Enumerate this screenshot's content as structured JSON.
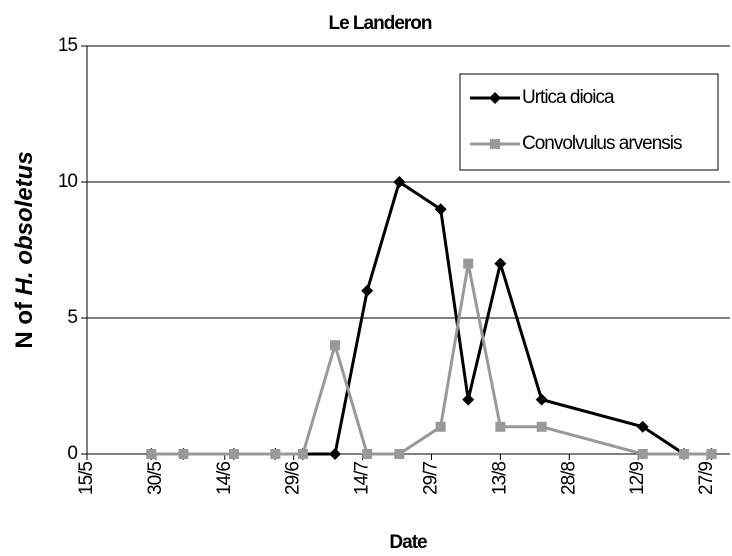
{
  "chart_data": {
    "type": "line",
    "title": "Le Landeron",
    "xlabel": "Date",
    "ylabel": [
      "N of ",
      "H. obsoletus"
    ],
    "x": [
      149,
      156,
      167,
      176,
      182,
      189,
      196,
      203,
      212,
      218,
      225,
      234,
      256,
      265,
      271
    ],
    "series": [
      {
        "name": "Urtica dioica",
        "color": "#000000",
        "marker": "diamond",
        "values": [
          0,
          0,
          0,
          0,
          0,
          0,
          6,
          10,
          9,
          2,
          7,
          2,
          1,
          0,
          0
        ]
      },
      {
        "name": "Convolvulus arvensis",
        "color": "#999999",
        "marker": "square",
        "values": [
          0,
          0,
          0,
          0,
          0,
          4,
          0,
          0,
          1,
          7,
          1,
          1,
          0,
          0,
          0
        ]
      }
    ],
    "xlim": [
      135,
      275
    ],
    "xticks": [
      {
        "value": 135,
        "label": "15/5"
      },
      {
        "value": 150,
        "label": "30/5"
      },
      {
        "value": 165,
        "label": "14/6"
      },
      {
        "value": 180,
        "label": "29/6"
      },
      {
        "value": 195,
        "label": "14/7"
      },
      {
        "value": 210,
        "label": "29/7"
      },
      {
        "value": 225,
        "label": "13/8"
      },
      {
        "value": 240,
        "label": "28/8"
      },
      {
        "value": 255,
        "label": "12/9"
      },
      {
        "value": 270,
        "label": "27/9"
      }
    ],
    "ylim": [
      0,
      15
    ],
    "yticks": [
      0,
      5,
      10,
      15
    ],
    "grid": true,
    "legend": "upper right"
  }
}
